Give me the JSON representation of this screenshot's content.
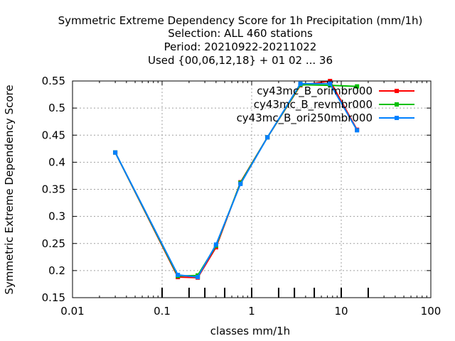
{
  "chart_data": {
    "type": "line",
    "title_lines": [
      "Symmetric Extreme Dependency Score  for 1h Precipitation (mm/1h)",
      "Selection: ALL    460 stations",
      "Period: 20210922-20211022",
      "Used {00,06,12,18} + 01 02 ... 36"
    ],
    "xlabel": "classes mm/1h",
    "ylabel": "Symmetric Extreme Dependency Score",
    "x_scale": "log",
    "xlim": [
      0.01,
      100
    ],
    "ylim": [
      0.15,
      0.55
    ],
    "x_ticks": [
      0.01,
      0.1,
      1,
      10,
      100
    ],
    "x_tick_labels": [
      "0.01",
      "0.1",
      "1",
      "10",
      "100"
    ],
    "y_ticks": [
      0.15,
      0.2,
      0.25,
      0.3,
      0.35,
      0.4,
      0.45,
      0.5,
      0.55
    ],
    "y_tick_labels": [
      "0.15",
      "0.2",
      "0.25",
      "0.3",
      "0.35",
      "0.4",
      "0.45",
      "0.5",
      "0.55"
    ],
    "class_marks": [
      0.1,
      0.2,
      0.3,
      0.5,
      1,
      2,
      3,
      5,
      10,
      20
    ],
    "grid": true,
    "legend_position": "top-right",
    "series": [
      {
        "name": "cy43mc_B_orimbr000",
        "color": "#ff0000",
        "x": [
          0.03,
          0.15,
          0.25,
          0.4,
          0.75,
          1.5,
          3.5,
          7.5,
          15
        ],
        "y": [
          0.418,
          0.188,
          0.187,
          0.243,
          0.363,
          0.446,
          0.542,
          0.55,
          0.46
        ]
      },
      {
        "name": "cy43mc_B_revmbr000",
        "color": "#00c000",
        "x": [
          0.03,
          0.15,
          0.25,
          0.4,
          0.75,
          1.5,
          3.5,
          7.5,
          15
        ],
        "y": [
          0.418,
          0.19,
          0.191,
          0.246,
          0.362,
          0.446,
          0.543,
          0.542,
          0.54
        ]
      },
      {
        "name": "cy43mc_B_ori250mbr000",
        "color": "#0080ff",
        "x": [
          0.03,
          0.15,
          0.25,
          0.4,
          0.75,
          1.5,
          3.5,
          7.5,
          15
        ],
        "y": [
          0.418,
          0.192,
          0.188,
          0.248,
          0.36,
          0.446,
          0.545,
          0.545,
          0.459
        ]
      }
    ]
  }
}
